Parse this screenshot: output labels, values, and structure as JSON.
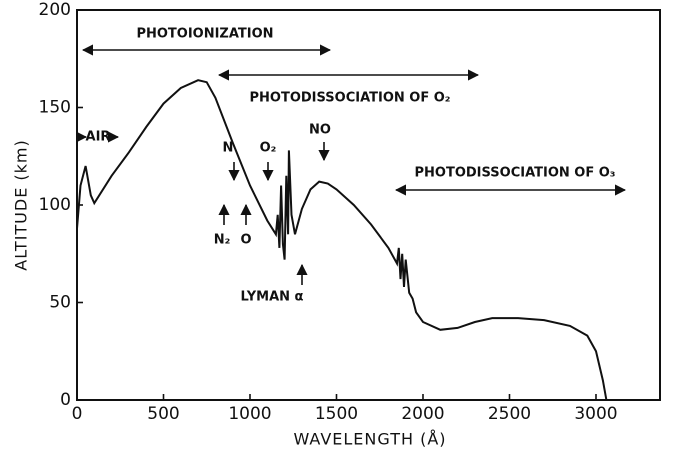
{
  "chart_data": {
    "type": "line",
    "x_label": "WAVELENGTH (Å)",
    "y_label": "ALTITUDE (km)",
    "xlim": [
      0,
      3370
    ],
    "ylim": [
      0,
      200
    ],
    "xticks": [
      0,
      500,
      1000,
      1500,
      2000,
      2500,
      3000
    ],
    "yticks": [
      0,
      50,
      100,
      150,
      200
    ],
    "color": "#111111",
    "x": [
      0,
      20,
      50,
      80,
      100,
      200,
      300,
      400,
      500,
      600,
      700,
      750,
      800,
      900,
      1000,
      1100,
      1150,
      1160,
      1170,
      1180,
      1190,
      1200,
      1210,
      1220,
      1225,
      1240,
      1260,
      1300,
      1350,
      1400,
      1450,
      1500,
      1600,
      1700,
      1800,
      1850,
      1860,
      1870,
      1880,
      1890,
      1900,
      1920,
      1940,
      1960,
      2000,
      2100,
      2200,
      2300,
      2400,
      2550,
      2700,
      2850,
      2950,
      3000,
      3040,
      3060
    ],
    "values": [
      88,
      110,
      120,
      105,
      101,
      115,
      127,
      140,
      152,
      160,
      164,
      163,
      155,
      132,
      110,
      92,
      85,
      95,
      78,
      110,
      80,
      72,
      115,
      85,
      128,
      95,
      85,
      98,
      108,
      112,
      111,
      108,
      100,
      90,
      78,
      70,
      78,
      62,
      75,
      58,
      72,
      55,
      52,
      45,
      40,
      36,
      37,
      40,
      42,
      42,
      41,
      38,
      33,
      25,
      10,
      0
    ],
    "annotations": [
      "PHOTOIONIZATION",
      "PHOTODISSOCIATION OF O₂",
      "PHOTODISSOCIATION OF O₃",
      "AIR",
      "N",
      "O₂",
      "NO",
      "N₂",
      "O",
      "LYMAN α"
    ]
  }
}
